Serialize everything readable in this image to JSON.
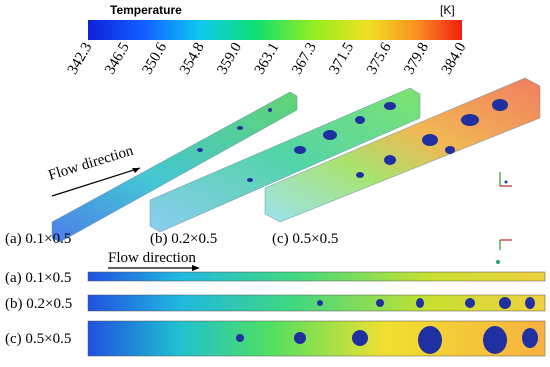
{
  "colorbar": {
    "title": "Temperature",
    "unit": "[K]",
    "ticks": [
      "342.3",
      "346.5",
      "350.6",
      "354.8",
      "359.0",
      "363.1",
      "367.3",
      "371.5",
      "375.6",
      "379.8",
      "384.0"
    ]
  },
  "isometric_view": {
    "flow_label": "Flow direction",
    "cases": [
      "(a) 0.1×0.5",
      "(b) 0.2×0.5",
      "(c) 0.5×0.5"
    ]
  },
  "top_view": {
    "flow_label": "Flow direction",
    "cases": [
      "(a) 0.1×0.5",
      "(b) 0.2×0.5",
      "(c) 0.5×0.5"
    ]
  }
}
